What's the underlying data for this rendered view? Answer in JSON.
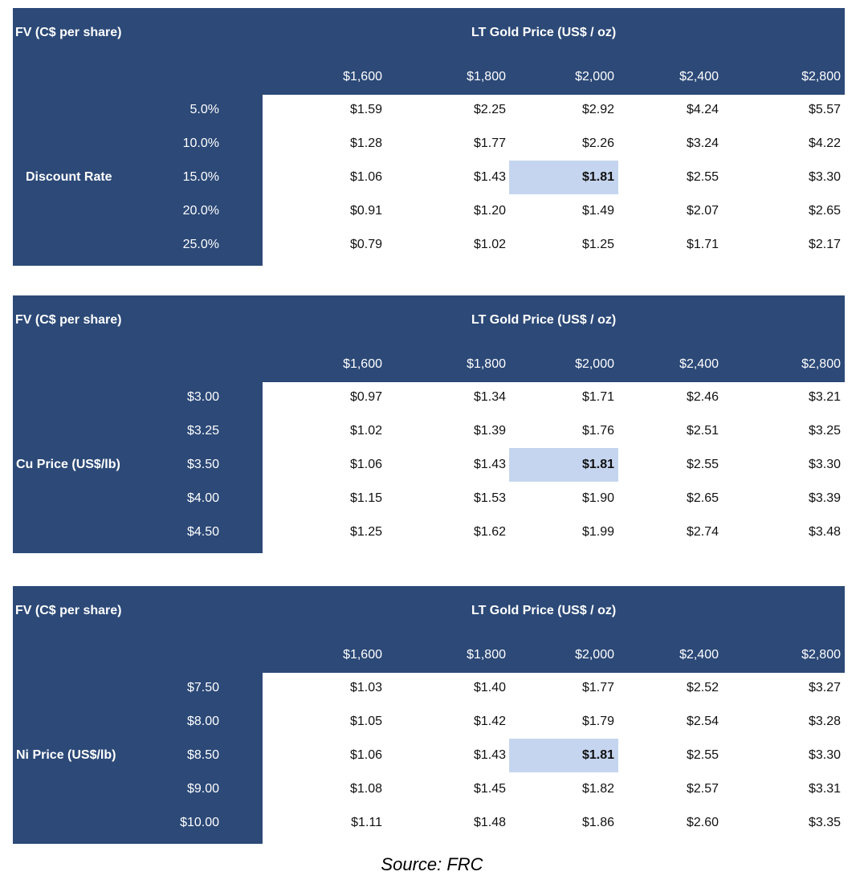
{
  "tables": [
    {
      "corner_label": "FV (C$ per share)",
      "header_label": "LT Gold Price (US$ / oz)",
      "row_label": "Discount Rate",
      "columns": [
        "$1,600",
        "$1,800",
        "$2,000",
        "$2,400",
        "$2,800"
      ],
      "rows": [
        {
          "label": "5.0%",
          "values": [
            "$1.59",
            "$2.25",
            "$2.92",
            "$4.24",
            "$5.57"
          ]
        },
        {
          "label": "10.0%",
          "values": [
            "$1.28",
            "$1.77",
            "$2.26",
            "$3.24",
            "$4.22"
          ]
        },
        {
          "label": "15.0%",
          "values": [
            "$1.06",
            "$1.43",
            "$1.81",
            "$2.55",
            "$3.30"
          ]
        },
        {
          "label": "20.0%",
          "values": [
            "$0.91",
            "$1.20",
            "$1.49",
            "$2.07",
            "$2.65"
          ]
        },
        {
          "label": "25.0%",
          "values": [
            "$0.79",
            "$1.02",
            "$1.25",
            "$1.71",
            "$2.17"
          ]
        }
      ]
    },
    {
      "corner_label": "FV (C$ per share)",
      "header_label": "LT Gold Price (US$ / oz)",
      "row_label": "Cu Price (US$/lb)",
      "columns": [
        "$1,600",
        "$1,800",
        "$2,000",
        "$2,400",
        "$2,800"
      ],
      "rows": [
        {
          "label": "$3.00",
          "values": [
            "$0.97",
            "$1.34",
            "$1.71",
            "$2.46",
            "$3.21"
          ]
        },
        {
          "label": "$3.25",
          "values": [
            "$1.02",
            "$1.39",
            "$1.76",
            "$2.51",
            "$3.25"
          ]
        },
        {
          "label": "$3.50",
          "values": [
            "$1.06",
            "$1.43",
            "$1.81",
            "$2.55",
            "$3.30"
          ]
        },
        {
          "label": "$4.00",
          "values": [
            "$1.15",
            "$1.53",
            "$1.90",
            "$2.65",
            "$3.39"
          ]
        },
        {
          "label": "$4.50",
          "values": [
            "$1.25",
            "$1.62",
            "$1.99",
            "$2.74",
            "$3.48"
          ]
        }
      ]
    },
    {
      "corner_label": "FV (C$ per share)",
      "header_label": "LT Gold Price (US$ / oz)",
      "row_label": "Ni Price (US$/lb)",
      "columns": [
        "$1,600",
        "$1,800",
        "$2,000",
        "$2,400",
        "$2,800"
      ],
      "rows": [
        {
          "label": "$7.50",
          "values": [
            "$1.03",
            "$1.40",
            "$1.77",
            "$2.52",
            "$3.27"
          ]
        },
        {
          "label": "$8.00",
          "values": [
            "$1.05",
            "$1.42",
            "$1.79",
            "$2.54",
            "$3.28"
          ]
        },
        {
          "label": "$8.50",
          "values": [
            "$1.06",
            "$1.43",
            "$1.81",
            "$2.55",
            "$3.30"
          ]
        },
        {
          "label": "$9.00",
          "values": [
            "$1.08",
            "$1.45",
            "$1.82",
            "$2.57",
            "$3.31"
          ]
        },
        {
          "label": "$10.00",
          "values": [
            "$1.11",
            "$1.48",
            "$1.86",
            "$2.60",
            "$3.35"
          ]
        }
      ]
    }
  ],
  "highlight": {
    "row": 2,
    "col": 2,
    "color": "#c5d5ef"
  },
  "colors": {
    "header_bg": "#2c4977",
    "header_text": "#ffffff",
    "cell_text": "#111111"
  },
  "source": "Source: FRC"
}
